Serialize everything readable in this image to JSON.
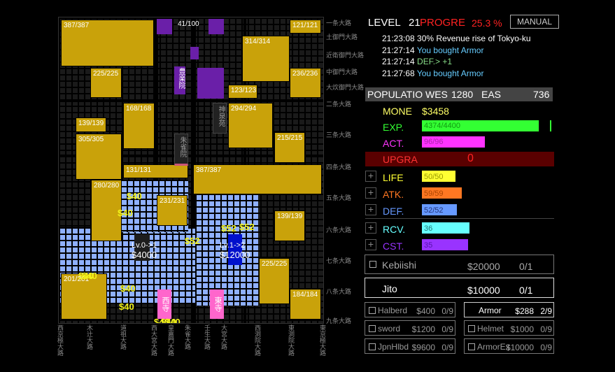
{
  "map": {
    "blocks": [
      {
        "label": "387/387"
      },
      {
        "label": "41/100"
      },
      {
        "label": "121/121"
      },
      {
        "label": "314/314"
      },
      {
        "label": "225/225"
      },
      {
        "label": "236/236"
      },
      {
        "label": "123/123"
      },
      {
        "label": "168/168"
      },
      {
        "label": "294/294"
      },
      {
        "label": "139/139"
      },
      {
        "label": "305/305"
      },
      {
        "label": "215/215"
      },
      {
        "label": "131/131"
      },
      {
        "label": "387/387"
      },
      {
        "label": "280/280"
      },
      {
        "label": "231/231"
      },
      {
        "label": "139/139"
      },
      {
        "label": "225/225"
      },
      {
        "label": "201/201"
      },
      {
        "label": "184/184"
      }
    ],
    "temples": {
      "hokoku": "豊楽院",
      "shinsen": "神泉苑",
      "suzaku": "朱雀院",
      "west": "西寺",
      "east": "東寺"
    },
    "right_roads": [
      "一条大路",
      "土御門大路",
      "近衛御門大路",
      "中御門大路",
      "大炊御門大路",
      "二条大路",
      "三条大路",
      "四条大路",
      "五条大路",
      "六条大路",
      "七条大路",
      "八条大路",
      "九条大路"
    ],
    "bottom_roads": [
      "西京極大路",
      "木辻大路",
      "道祖大路",
      "西大宮大路",
      "皇嘉門大路",
      "朱雀大路",
      "壬生大路",
      "大宮大路",
      "西洞院大路",
      "東洞院大路",
      "東京極大路"
    ],
    "floats": [
      "$40",
      "$40",
      "$40",
      "$52",
      "$52",
      "$52",
      "$40",
      "$40",
      "$40",
      "$40",
      "$40",
      "$40"
    ],
    "level_tags": [
      {
        "line1": "Lv.0->1",
        "line2": "$4000"
      },
      {
        "line1": "Lv.1->2",
        "line2": "$12000"
      }
    ]
  },
  "header": {
    "level_label": "LEVEL",
    "level_value": "21",
    "progress_label": "PROGRE",
    "progress_value": "25.3 %",
    "manual_button": "MANUAL"
  },
  "log": [
    {
      "time": "21:23:08",
      "text": "30% Revenue rise of Tokyo-ku",
      "color": "#ffffff"
    },
    {
      "time": "21:27:14",
      "text": "You bought Armor",
      "color": "#66ccff"
    },
    {
      "time": "21:27:14",
      "text": "DEF.> +1",
      "color": "#88dd88"
    },
    {
      "time": "21:27:68",
      "text": "You bought Armor",
      "color": "#66ccff"
    }
  ],
  "population": {
    "label": "POPULATIO",
    "west_label": "WES",
    "west_value": "1280",
    "east_label": "EAS",
    "east_value": "736"
  },
  "stats": {
    "money_label": "MONE",
    "money_value": "$3458",
    "exp_label": "EXP.",
    "exp_value": "4374/4400",
    "exp_fraction": 0.994,
    "act_label": "ACT.",
    "act_value": "96/96",
    "act_fraction": 1.0,
    "upgrade_label": "UPGRA",
    "upgrade_value": "0",
    "life_label": "LIFE",
    "life_value": "50/50",
    "atk_label": "ATK.",
    "atk_value": "59/59",
    "def_label": "DEF.",
    "def_value": "52/52",
    "rcv_label": "RCV.",
    "rcv_value": "36",
    "cst_label": "CST.",
    "cst_value": "35"
  },
  "colors": {
    "money": "#ffff66",
    "exp": "#33ff33",
    "act": "#ff33ff",
    "upgrade": "#ff3333",
    "life": "#ffff33",
    "atk": "#ff7722",
    "def": "#6699ff",
    "rcv": "#66ffff",
    "cst": "#9933ff",
    "block": "#c9a20a",
    "blue": "#8fb0ff"
  },
  "hire": [
    {
      "name": "Kebiishi",
      "price": "$20000",
      "count": "0/1",
      "locked": true
    },
    {
      "name": "Jito",
      "price": "$10000",
      "count": "0/1",
      "locked": false
    }
  ],
  "shop": [
    {
      "name": "Halberd",
      "price": "$400",
      "count": "0/9",
      "locked": true
    },
    {
      "name": "Armor",
      "price": "$288",
      "count": "2/9",
      "locked": false
    },
    {
      "name": "sword",
      "price": "$1200",
      "count": "0/9",
      "locked": true
    },
    {
      "name": "Helmet",
      "price": "$1000",
      "count": "0/9",
      "locked": true
    },
    {
      "name": "JpnHlbd",
      "price": "$9600",
      "count": "0/9",
      "locked": true
    },
    {
      "name": "ArmorEx",
      "price": "$10000",
      "count": "0/9",
      "locked": true
    }
  ]
}
